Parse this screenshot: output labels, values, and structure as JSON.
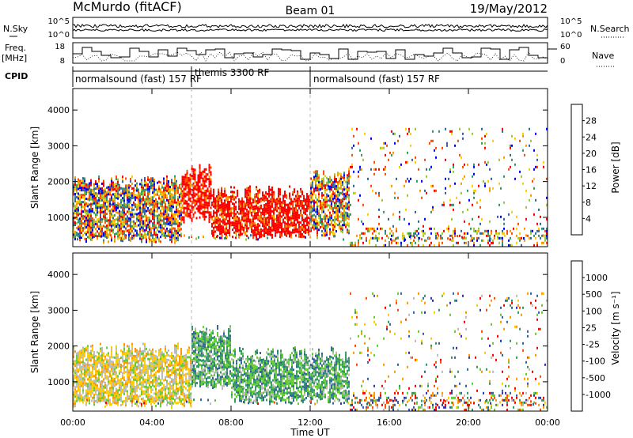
{
  "header": {
    "site": "McMurdo (fitACF)",
    "beam": "Beam 01",
    "date": "19/May/2012"
  },
  "summary_panels": {
    "noise": {
      "left_label": "N.Sky",
      "right_label": "N.Search",
      "left_ticks": [
        "10^5",
        "10^0"
      ],
      "right_ticks": [
        "10^5",
        "10^0"
      ]
    },
    "freq": {
      "left_label": "Freq.",
      "left_unit": "[MHz]",
      "right_label": "Nave",
      "left_ticks": [
        "18",
        "8"
      ],
      "right_ticks": [
        "60",
        "0"
      ]
    },
    "cpid": {
      "label": "CPID",
      "segments": [
        {
          "label": "normalsound (fast) 157 RF",
          "start_h": 0,
          "end_h": 6
        },
        {
          "label": "themis 3300 RF",
          "start_h": 6,
          "end_h": 12
        },
        {
          "label": "normalsound (fast) 157 RF",
          "start_h": 12,
          "end_h": 24
        }
      ]
    }
  },
  "chart_data": [
    {
      "type": "heatmap",
      "panel": "power",
      "xlabel": "Time UT",
      "ylabel": "Slant Range [km]",
      "x_ticks": [
        "00:00",
        "04:00",
        "08:00",
        "12:00",
        "16:00",
        "20:00",
        "00:00"
      ],
      "xlim": [
        0,
        24
      ],
      "ylim": [
        180,
        4600
      ],
      "y_ticks": [
        1000,
        2000,
        3000,
        4000
      ],
      "colorbar": {
        "label": "Power [dB]",
        "ticks": [
          "28",
          "24",
          "20",
          "16",
          "12",
          "8",
          "4"
        ],
        "colors": [
          "#ff0000",
          "#ff4d00",
          "#ff9900",
          "#ffcc00",
          "#99cc33",
          "#339966",
          "#336699",
          "#0000ff"
        ]
      },
      "regions": [
        {
          "t_start": 0,
          "t_end": 5.5,
          "r_min": 400,
          "r_max": 2000,
          "level": "medium"
        },
        {
          "t_start": 5.5,
          "t_end": 7,
          "r_min": 1000,
          "r_max": 2300,
          "level": "high"
        },
        {
          "t_start": 7,
          "t_end": 12,
          "r_min": 500,
          "r_max": 1700,
          "level": "high"
        },
        {
          "t_start": 12,
          "t_end": 14,
          "r_min": 600,
          "r_max": 2200,
          "level": "medium"
        },
        {
          "t_start": 14,
          "t_end": 24,
          "r_min": 200,
          "r_max": 3500,
          "level": "sparse"
        }
      ]
    },
    {
      "type": "heatmap",
      "panel": "velocity",
      "xlabel": "Time UT",
      "ylabel": "Slant Range [km]",
      "x_ticks": [
        "00:00",
        "04:00",
        "08:00",
        "12:00",
        "16:00",
        "20:00",
        "00:00"
      ],
      "xlim": [
        0,
        24
      ],
      "ylim": [
        180,
        4600
      ],
      "y_ticks": [
        1000,
        2000,
        3000,
        4000
      ],
      "colorbar": {
        "label": "Velocity [m s⁻¹]",
        "ticks": [
          "1000",
          "500",
          "100",
          "25",
          "-25",
          "-100",
          "-500",
          "-1000"
        ],
        "colors": [
          "#3333aa",
          "#336699",
          "#339966",
          "#66cc33",
          "#bbbbbb",
          "#ffcc00",
          "#ff9900",
          "#ff4d00",
          "#ff0000"
        ]
      },
      "regions": [
        {
          "t_start": 0,
          "t_end": 6,
          "r_min": 400,
          "r_max": 1900,
          "level": "negative"
        },
        {
          "t_start": 6,
          "t_end": 8,
          "r_min": 900,
          "r_max": 2400,
          "level": "positive"
        },
        {
          "t_start": 8,
          "t_end": 14,
          "r_min": 500,
          "r_max": 1800,
          "level": "positive"
        },
        {
          "t_start": 14,
          "t_end": 24,
          "r_min": 200,
          "r_max": 3500,
          "level": "sparse"
        }
      ]
    }
  ]
}
